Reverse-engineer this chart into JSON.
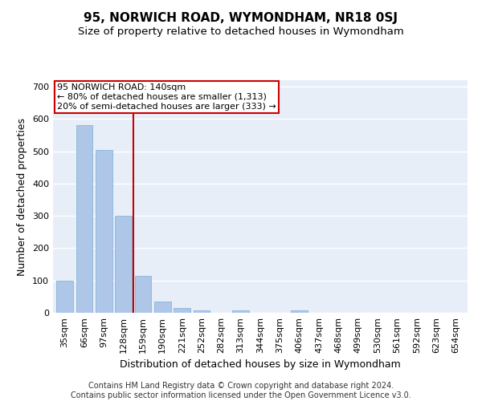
{
  "title": "95, NORWICH ROAD, WYMONDHAM, NR18 0SJ",
  "subtitle": "Size of property relative to detached houses in Wymondham",
  "xlabel": "Distribution of detached houses by size in Wymondham",
  "ylabel": "Number of detached properties",
  "footer_line1": "Contains HM Land Registry data © Crown copyright and database right 2024.",
  "footer_line2": "Contains public sector information licensed under the Open Government Licence v3.0.",
  "categories": [
    "35sqm",
    "66sqm",
    "97sqm",
    "128sqm",
    "159sqm",
    "190sqm",
    "221sqm",
    "252sqm",
    "282sqm",
    "313sqm",
    "344sqm",
    "375sqm",
    "406sqm",
    "437sqm",
    "468sqm",
    "499sqm",
    "530sqm",
    "561sqm",
    "592sqm",
    "623sqm",
    "654sqm"
  ],
  "values": [
    100,
    580,
    505,
    300,
    115,
    35,
    15,
    8,
    0,
    8,
    0,
    0,
    8,
    0,
    0,
    0,
    0,
    0,
    0,
    0,
    0
  ],
  "bar_color": "#aec6e8",
  "bar_edge_color": "#7aadd4",
  "background_color": "#e8eef8",
  "grid_color": "#ffffff",
  "vline_x": 3.5,
  "vline_color": "#cc0000",
  "annotation_text": "95 NORWICH ROAD: 140sqm\n← 80% of detached houses are smaller (1,313)\n20% of semi-detached houses are larger (333) →",
  "annotation_box_color": "#ffffff",
  "annotation_box_edge": "#cc0000",
  "ylim": [
    0,
    720
  ],
  "yticks": [
    0,
    100,
    200,
    300,
    400,
    500,
    600,
    700
  ],
  "title_fontsize": 11,
  "subtitle_fontsize": 9.5,
  "axis_label_fontsize": 9,
  "tick_fontsize": 8,
  "footer_fontsize": 7,
  "annotation_fontsize": 8
}
